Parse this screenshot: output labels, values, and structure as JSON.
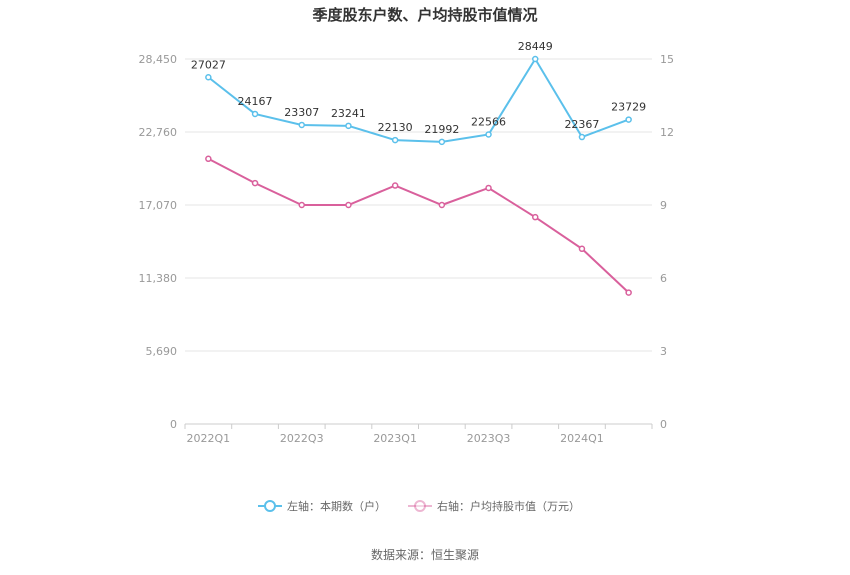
{
  "chart_data": {
    "type": "line",
    "title": "季度股东户数、户均持股市值情况",
    "x": [
      "2022Q1",
      "2022Q2",
      "2022Q3",
      "2022Q4",
      "2023Q1",
      "2023Q2",
      "2023Q3",
      "2023Q4",
      "2024Q1",
      "2024Q2"
    ],
    "x_tick_labels": [
      "2022Q1",
      "",
      "2022Q3",
      "",
      "2023Q1",
      "",
      "2023Q3",
      "",
      "2024Q1",
      ""
    ],
    "left_axis": {
      "ticks": [
        "0",
        "5,690",
        "11,380",
        "17,070",
        "22,760",
        "28,450"
      ],
      "ylim": [
        0,
        28450
      ]
    },
    "right_axis": {
      "ticks": [
        "0",
        "3",
        "6",
        "9",
        "12",
        "15"
      ],
      "ylim": [
        0,
        15
      ]
    },
    "series": [
      {
        "name": "左轴：本期数（户）",
        "axis": "left",
        "color": "#5bc0eb",
        "values": [
          27027,
          24167,
          23307,
          23241,
          22130,
          21992,
          22566,
          28449,
          22367,
          23729
        ],
        "labels": [
          "27027",
          "24167",
          "23307",
          "23241",
          "22130",
          "21992",
          "22566",
          "28449",
          "22367",
          "23729"
        ]
      },
      {
        "name": "右轴：户均持股市值（万元）",
        "axis": "right",
        "color": "#d9609c",
        "values": [
          10.9,
          9.9,
          9.0,
          9.0,
          9.8,
          9.0,
          9.7,
          8.5,
          7.2,
          5.4
        ]
      }
    ],
    "grid": true,
    "legend": "bottom-center"
  },
  "source_text": "数据来源：恒生聚源"
}
